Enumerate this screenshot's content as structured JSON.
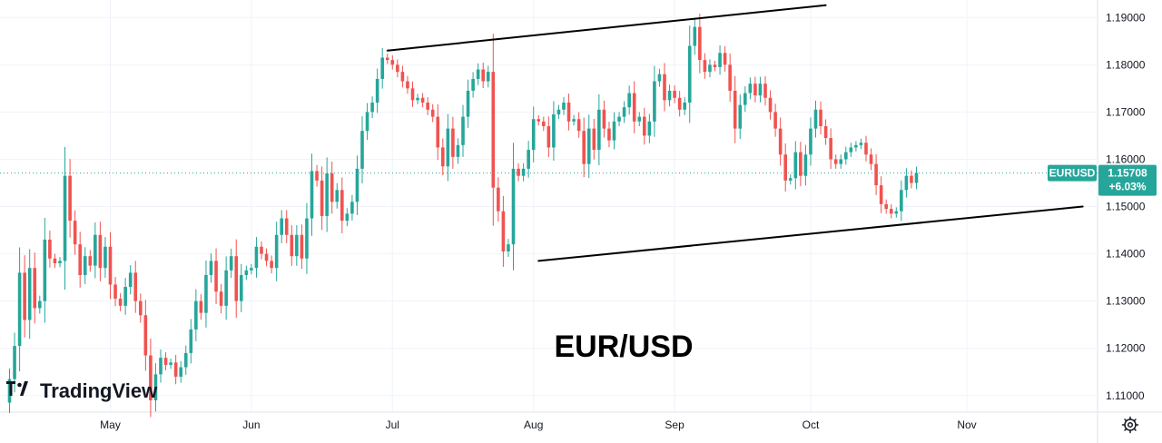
{
  "chart_data": {
    "type": "candlestick",
    "title": "EUR/USD",
    "symbol": "EURUSD",
    "watermark": "TradingView",
    "last_price": "1.15708",
    "change_pct": "+6.03%",
    "colors": {
      "up": "#26a69a",
      "down": "#ef5350",
      "badge": "#26a69a",
      "axis_text": "#131722",
      "grid": "#f0f3fa"
    },
    "y_ticks": [
      "1.11000",
      "1.12000",
      "1.13000",
      "1.14000",
      "1.15000",
      "1.16000",
      "1.17000",
      "1.18000",
      "1.19000"
    ],
    "ylim": [
      1.1065,
      1.1937
    ],
    "x_months": [
      "May",
      "Jun",
      "Jul",
      "Aug",
      "Sep",
      "Oct",
      "Nov"
    ],
    "x_month_index": [
      20,
      48,
      76,
      104,
      132,
      159,
      190
    ],
    "trendlines": [
      {
        "name": "upper",
        "from": {
          "i": 75,
          "price": 1.183
        },
        "to": {
          "i": 162,
          "price": 1.1926
        }
      },
      {
        "name": "lower",
        "from": {
          "i": 105,
          "price": 1.1385
        },
        "to": {
          "i": 213,
          "price": 1.15
        }
      }
    ],
    "closes": [
      1.1135,
      1.1205,
      1.136,
      1.126,
      1.137,
      1.1285,
      1.13,
      1.143,
      1.139,
      1.138,
      1.1385,
      1.1565,
      1.147,
      1.142,
      1.1355,
      1.1395,
      1.1375,
      1.144,
      1.137,
      1.1415,
      1.1335,
      1.1305,
      1.129,
      1.133,
      1.136,
      1.13,
      1.127,
      1.1185,
      1.109,
      1.1145,
      1.118,
      1.1165,
      1.117,
      1.114,
      1.116,
      1.119,
      1.124,
      1.13,
      1.1275,
      1.1355,
      1.1385,
      1.132,
      1.129,
      1.1365,
      1.1395,
      1.13,
      1.1355,
      1.1365,
      1.137,
      1.1415,
      1.14,
      1.1385,
      1.137,
      1.144,
      1.1475,
      1.144,
      1.1395,
      1.144,
      1.139,
      1.1475,
      1.1575,
      1.1555,
      1.148,
      1.157,
      1.151,
      1.1535,
      1.147,
      1.1485,
      1.151,
      1.158,
      1.166,
      1.17,
      1.172,
      1.177,
      1.1815,
      1.181,
      1.18,
      1.1785,
      1.1765,
      1.175,
      1.1725,
      1.173,
      1.172,
      1.1705,
      1.169,
      1.1625,
      1.1585,
      1.1665,
      1.1605,
      1.163,
      1.169,
      1.1745,
      1.177,
      1.179,
      1.1765,
      1.1785,
      1.154,
      1.149,
      1.1405,
      1.142,
      1.158,
      1.1565,
      1.158,
      1.162,
      1.1685,
      1.168,
      1.167,
      1.1625,
      1.1695,
      1.1705,
      1.172,
      1.168,
      1.1685,
      1.166,
      1.159,
      1.1665,
      1.162,
      1.1705,
      1.1665,
      1.164,
      1.168,
      1.169,
      1.171,
      1.174,
      1.168,
      1.169,
      1.165,
      1.168,
      1.1765,
      1.178,
      1.1725,
      1.1745,
      1.173,
      1.1705,
      1.172,
      1.184,
      1.188,
      1.181,
      1.1785,
      1.18,
      1.1795,
      1.1825,
      1.18,
      1.1745,
      1.1665,
      1.1715,
      1.174,
      1.176,
      1.1735,
      1.176,
      1.173,
      1.17,
      1.1665,
      1.161,
      1.1555,
      1.156,
      1.1615,
      1.1565,
      1.161,
      1.1665,
      1.1705,
      1.167,
      1.1645,
      1.16,
      1.159,
      1.16,
      1.1615,
      1.1625,
      1.163,
      1.1635,
      1.161,
      1.159,
      1.1545,
      1.1505,
      1.1495,
      1.1485,
      1.149,
      1.1535,
      1.1565,
      1.155,
      1.1571
    ]
  }
}
